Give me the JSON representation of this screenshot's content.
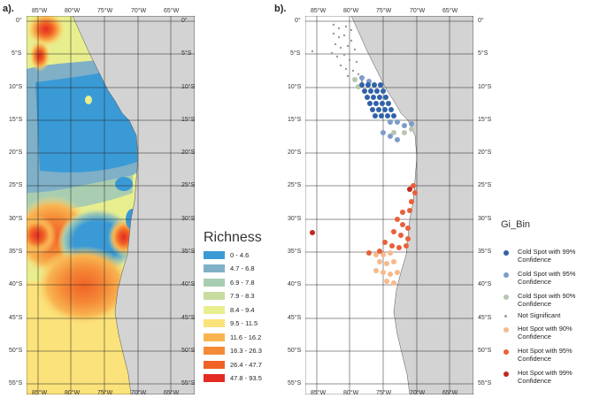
{
  "panel_a": {
    "label": "a).",
    "top_ticks": [
      "85°W",
      "80°W",
      "75°W",
      "70°W",
      "65°W"
    ],
    "bottom_ticks": [
      "85°W",
      "80°W",
      "75°W",
      "70°W",
      "65°W"
    ],
    "lat_ticks": [
      "0°",
      "5°S",
      "10°S",
      "15°S",
      "20°S",
      "25°S",
      "30°S",
      "35°S",
      "40°S",
      "45°S",
      "50°S",
      "55°S"
    ]
  },
  "panel_b": {
    "label": "b).",
    "top_ticks": [
      "85°W",
      "80°W",
      "75°W",
      "70°W",
      "65°W"
    ],
    "bottom_ticks": [
      "85°W",
      "80°W",
      "75°W",
      "70°W",
      "65°W"
    ],
    "lat_ticks": [
      "0°",
      "5°S",
      "10°S",
      "15°S",
      "20°S",
      "25°S",
      "30°S",
      "35°S",
      "40°S",
      "45°S",
      "50°S",
      "55°S"
    ]
  },
  "richness_legend": {
    "title": "Richness",
    "items": [
      {
        "label": "0 - 4.6",
        "color": "#3a9ad6"
      },
      {
        "label": "4.7 - 6.8",
        "color": "#7fb0c8"
      },
      {
        "label": "6.9 - 7.8",
        "color": "#a9cdb0"
      },
      {
        "label": "7.9 - 8.3",
        "color": "#c8dca0"
      },
      {
        "label": "8.4 - 9.4",
        "color": "#e8ee8e"
      },
      {
        "label": "9.5 - 11.5",
        "color": "#fbe27a"
      },
      {
        "label": "11.6 - 16.2",
        "color": "#f9b450"
      },
      {
        "label": "16.3 - 26.3",
        "color": "#f58b38"
      },
      {
        "label": "26.4 - 47.7",
        "color": "#f06226"
      },
      {
        "label": "47.8 - 93.5",
        "color": "#e52a22"
      }
    ]
  },
  "gi_legend": {
    "title": "Gi_Bin",
    "items": [
      {
        "label": "Cold Spot with 99% Confidence",
        "color": "#3162a8"
      },
      {
        "label": "Cold Spot with 95% Confidence",
        "color": "#7c9cc8"
      },
      {
        "label": "Cold Spot with 90% Confidence",
        "color": "#b8c6b0"
      },
      {
        "label": "Not Significant",
        "color": "#9a9a9a"
      },
      {
        "label": "Hot Spot with 90% Confidence",
        "color": "#f7b98a"
      },
      {
        "label": "Hot Spot with 95% Confidence",
        "color": "#e8603a"
      },
      {
        "label": "Hot Spot with 99% Confidence",
        "color": "#c0281e"
      }
    ]
  }
}
